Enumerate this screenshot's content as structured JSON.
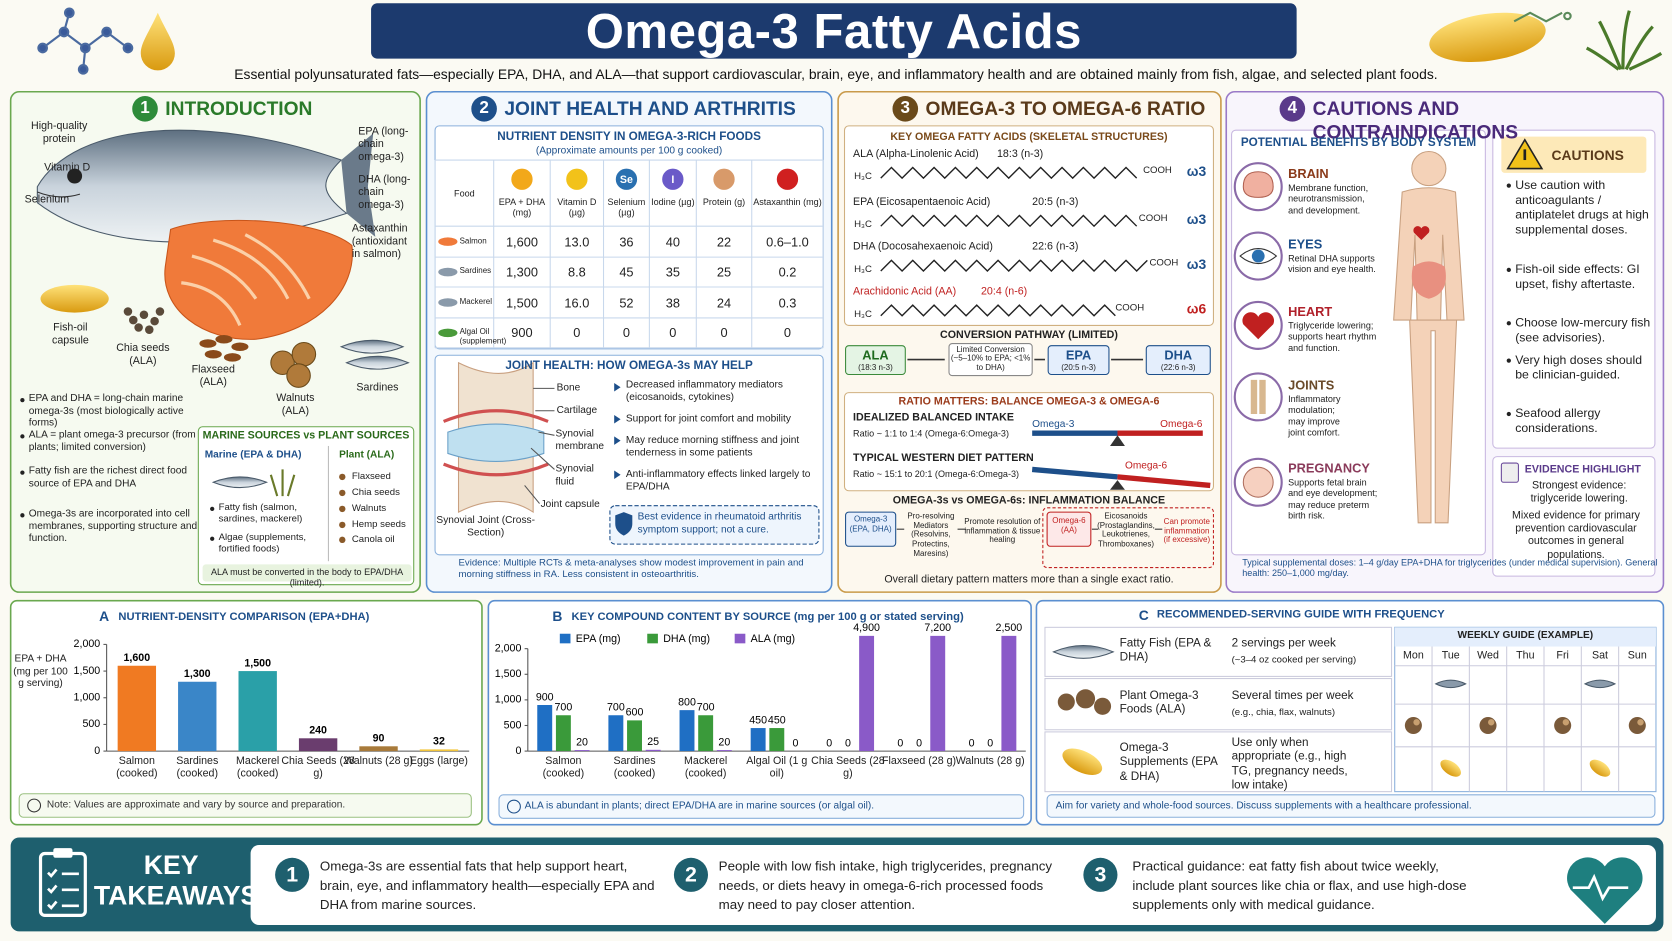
{
  "header": {
    "title": "Omega-3 Fatty Acids",
    "subtitle": "Essential polyunsaturated fats—especially EPA, DHA, and ALA—that support cardiovascular, brain, eye, and inflammatory health and are obtained mainly from fish, algae, and selected plant foods."
  },
  "intro": {
    "number": "1",
    "title": "INTRODUCTION",
    "labels": [
      "High-quality protein",
      "Vitamin D",
      "Selenium",
      "EPA (long-chain omega-3)",
      "DHA (long-chain omega-3)",
      "Astaxanthin (antioxidant in salmon)",
      "Fish-oil capsule",
      "Chia seeds (ALA)",
      "Flaxseed (ALA)",
      "Walnuts (ALA)",
      "Sardines"
    ],
    "bullets": [
      "EPA and DHA = long-chain marine omega-3s (most biologically active forms)",
      "ALA = plant omega-3 precursor (from plants; limited conversion)",
      "Fatty fish are the richest direct food source of EPA and DHA",
      "Omega-3s are incorporated into cell membranes, supporting structure and function."
    ],
    "sources": {
      "title": "MARINE SOURCES vs PLANT SOURCES",
      "marine_title": "Marine (EPA & DHA)",
      "marine": [
        "Fatty fish (salmon, sardines, mackerel)",
        "Algae (supplements, fortified foods)"
      ],
      "plant_title": "Plant (ALA)",
      "plant": [
        "Flaxseed",
        "Chia seeds",
        "Walnuts",
        "Hemp seeds",
        "Canola oil"
      ],
      "note": "ALA must be converted in the body to EPA/DHA (limited)."
    }
  },
  "joint": {
    "number": "2",
    "title": "JOINT HEALTH AND ARTHRITIS",
    "table": {
      "title": "NUTRIENT DENSITY IN OMEGA-3-RICH FOODS",
      "subtitle": "(Approximate amounts per 100 g cooked)",
      "header": [
        "Food",
        "EPA + DHA (mg)",
        "Vitamin D (µg)",
        "Selenium (µg)",
        "Iodine (µg)",
        "Protein (g)",
        "Astaxanthin (mg)"
      ],
      "icons": [
        "Se",
        "I"
      ],
      "rows": [
        [
          "Salmon",
          "1,600",
          "13.0",
          "36",
          "40",
          "22",
          "0.6–1.0"
        ],
        [
          "Sardines",
          "1,300",
          "8.8",
          "45",
          "35",
          "25",
          "0.2"
        ],
        [
          "Mackerel",
          "1,500",
          "16.0",
          "52",
          "38",
          "24",
          "0.3"
        ],
        [
          "Algal Oil (supplement)",
          "900",
          "0",
          "0",
          "0",
          "0",
          "0"
        ]
      ]
    },
    "help": {
      "title": "JOINT HEALTH: HOW OMEGA-3s MAY HELP",
      "labels": [
        "Bone",
        "Cartilage",
        "Synovial membrane",
        "Synovial fluid",
        "Joint capsule"
      ],
      "caption": "Synovial Joint (Cross-Section)",
      "bullets": [
        "Decreased inflammatory mediators (eicosanoids, cytokines)",
        "Support for joint comfort and mobility",
        "May reduce morning stiffness and joint tenderness in some patients",
        "Anti-inflammatory effects linked largely to EPA/DHA"
      ],
      "highlight": "Best evidence in rheumatoid arthritis symptom support; not a cure."
    },
    "evidence": "Evidence: Multiple RCTs & meta-analyses show modest improvement in pain and morning stiffness in RA. Less consistent in osteoarthritis."
  },
  "ratio": {
    "number": "3",
    "title": "OMEGA-3 TO OMEGA-6 RATIO",
    "structures_title": "KEY OMEGA FATTY ACIDS (SKELETAL STRUCTURES)",
    "methyl": "H₃C",
    "carboxyl": "COOH",
    "acids": [
      {
        "name": "ALA (Alpha-Linolenic Acid)",
        "formula": "18:3 (n-3)",
        "tag": "ω3"
      },
      {
        "name": "EPA (Eicosapentaenoic Acid)",
        "formula": "20:5 (n-3)",
        "tag": "ω3"
      },
      {
        "name": "DHA (Docosahexaenoic Acid)",
        "formula": "22:6 (n-3)",
        "tag": "ω3"
      },
      {
        "name": "Arachidonic Acid (AA)",
        "formula": "20:4 (n-6)",
        "tag": "ω6"
      }
    ],
    "conversion": {
      "title": "CONVERSION PATHWAY (LIMITED)",
      "steps": [
        {
          "name": "ALA",
          "detail": "(18:3 n-3)"
        },
        {
          "name": "EPA",
          "detail": "(20:5 n-3)"
        },
        {
          "name": "DHA",
          "detail": "(22:6 n-3)"
        }
      ],
      "limit": "Limited Conversion (~5–10% to EPA; <1% to DHA)"
    },
    "balance": {
      "title": "RATIO MATTERS: BALANCE OMEGA-3 & OMEGA-6",
      "ideal_title": "IDEALIZED BALANCED INTAKE",
      "ideal_ratio": "Ratio ~ 1:1 to 1:4 (Omega-6:Omega-3)",
      "omega3": "Omega-3",
      "omega6": "Omega-6",
      "western_title": "TYPICAL WESTERN DIET PATTERN",
      "western_ratio": "Ratio ~ 15:1 to 20:1 (Omega-6:Omega-3)",
      "western_omega6": "Omega-6"
    },
    "inflammation": {
      "title": "OMEGA-3s vs OMEGA-6s: INFLAMMATION BALANCE",
      "omega3": "Omega-3 (EPA, DHA)",
      "mediators": "Pro-resolving Mediators (Resolvins, Protectins, Maresins)",
      "resolution": "Promote resolution of inflammation & tissue healing",
      "omega6": "Omega-6 (AA)",
      "eicosanoids": "Eicosanoids (Prostaglandins, Leukotrienes, Thromboxanes)",
      "promote": "Can promote inflammation (if excessive)"
    },
    "footer": "Overall dietary pattern matters more than a single exact ratio."
  },
  "cautions": {
    "number": "4",
    "title": "CAUTIONS AND CONTRAINDICATIONS",
    "benefits_title": "POTENTIAL BENEFITS BY BODY SYSTEM",
    "benefits": [
      {
        "name": "BRAIN",
        "text": "Membrane function, neurotransmission, and development."
      },
      {
        "name": "EYES",
        "text": "Retinal DHA supports vision and eye health."
      },
      {
        "name": "HEART",
        "text": "Triglyceride lowering; supports heart rhythm and function."
      },
      {
        "name": "JOINTS",
        "text": "Inflammatory modulation; may improve joint comfort."
      },
      {
        "name": "PREGNANCY",
        "text": "Supports fetal brain and eye development; may reduce preterm birth risk."
      }
    ],
    "dose_note": "Typical supplemental doses: 1–4 g/day EPA+DHA for triglycerides (under medical supervision). General health: 250–1,000 mg/day.",
    "box_title": "CAUTIONS",
    "items": [
      "Use caution with anticoagulants / antiplatelet drugs at high supplemental doses.",
      "Fish-oil side effects: GI upset, fishy aftertaste.",
      "Choose low-mercury fish (see advisories).",
      "Very high doses should be clinician-guided.",
      "Seafood allergy considerations."
    ],
    "evidence": {
      "title": "EVIDENCE HIGHLIGHT",
      "strong": "Strongest evidence: triglyceride lowering.",
      "mixed": "Mixed evidence for primary prevention cardiovascular outcomes in general populations."
    }
  },
  "chart_data": [
    {
      "type": "bar",
      "letter": "A",
      "title": "NUTRIENT-DENSITY COMPARISON (EPA+DHA)",
      "y_label": "EPA + DHA (mg per 100 g serving)",
      "categories": [
        "Salmon (cooked)",
        "Sardines (cooked)",
        "Mackerel (cooked)",
        "Chia Seeds (28 g)",
        "Walnuts (28 g)",
        "Eggs (large)"
      ],
      "values": [
        1600,
        1300,
        1500,
        240,
        90,
        32
      ],
      "value_labels": [
        "1,600",
        "1,300",
        "1,500",
        "240",
        "90",
        "32"
      ],
      "colors": [
        "#f07a22",
        "#3a86c8",
        "#2aa0a8",
        "#6a3d6e",
        "#a87a3a",
        "#f2c53c"
      ],
      "ylim": [
        0,
        2000
      ],
      "yticks": [
        0,
        500,
        {
          "value": 1000,
          "label": "1,000"
        },
        {
          "value": 1500,
          "label": "1,500"
        },
        {
          "value": 2000,
          "label": "2,000"
        }
      ],
      "note": "Note: Values are approximate and vary by source and preparation."
    },
    {
      "type": "grouped_bar",
      "letter": "B",
      "title": "KEY COMPOUND CONTENT BY SOURCE (mg per 100 g or stated serving)",
      "categories": [
        "Salmon (cooked)",
        "Sardines (cooked)",
        "Mackerel (cooked)",
        "Algal Oil (1 g oil)",
        "Chia Seeds (28 g)",
        "Flaxseed (28 g)",
        "Walnuts (28 g)"
      ],
      "series": [
        {
          "name": "EPA (mg)",
          "color": "#1f6fc4",
          "values": [
            900,
            700,
            800,
            450,
            0,
            0,
            0
          ],
          "value_labels": [
            "900",
            "700",
            "800",
            "450",
            "0",
            "0",
            "0"
          ]
        },
        {
          "name": "DHA (mg)",
          "color": "#3a9a3a",
          "values": [
            700,
            600,
            700,
            450,
            0,
            0,
            0
          ],
          "value_labels": [
            "700",
            "600",
            "700",
            "450",
            "0",
            "0",
            "0"
          ]
        },
        {
          "name": "ALA (mg)",
          "color": "#8a5ac8",
          "values": [
            20,
            25,
            20,
            0,
            4900,
            7200,
            2500
          ],
          "value_labels": [
            "20",
            "25",
            "20",
            "0",
            "4,900",
            "7,200",
            "2,500"
          ]
        }
      ],
      "ylim": [
        0,
        2000
      ],
      "yticks": [
        0,
        500,
        {
          "value": 1000,
          "label": "1,000"
        },
        {
          "value": 1500,
          "label": "1,500"
        },
        {
          "value": 2000,
          "label": "2,000"
        }
      ],
      "note": "ALA is abundant in plants; direct EPA/DHA are in marine sources (or algal oil)."
    }
  ],
  "serving": {
    "letter": "C",
    "title": "RECOMMENDED-SERVING GUIDE WITH FREQUENCY",
    "rows": [
      {
        "name": "Fatty Fish (EPA & DHA)",
        "frequency": "2 servings per week",
        "detail": "(~3–4 oz cooked per serving)"
      },
      {
        "name": "Plant Omega-3 Foods (ALA)",
        "frequency": "Several times per week",
        "detail": "(e.g., chia, flax, walnuts)"
      },
      {
        "name": "Omega-3 Supplements (EPA & DHA)",
        "frequency": "Use only when appropriate (e.g., high TG, pregnancy needs, low intake)"
      }
    ],
    "weekly_title": "WEEKLY GUIDE (EXAMPLE)",
    "days": [
      "Mon",
      "Tue",
      "Wed",
      "Thu",
      "Fri",
      "Sat",
      "Sun"
    ],
    "footer": "Aim for variety and whole-food sources. Discuss supplements with a healthcare professional."
  },
  "takeaways": {
    "title": "KEY TAKEAWAYS",
    "items": [
      {
        "number": "1",
        "text": "Omega-3s are essential fats that help support heart, brain, eye, and inflammatory health—especially EPA and DHA from marine sources."
      },
      {
        "number": "2",
        "text": "People with low fish intake, high triglycerides, pregnancy needs, or diets heavy in omega-6-rich processed foods may need to pay closer attention."
      },
      {
        "number": "3",
        "text": "Practical guidance: eat fatty fish about twice weekly, include plant sources like chia or flax, and use high-dose supplements only with medical guidance."
      }
    ]
  }
}
